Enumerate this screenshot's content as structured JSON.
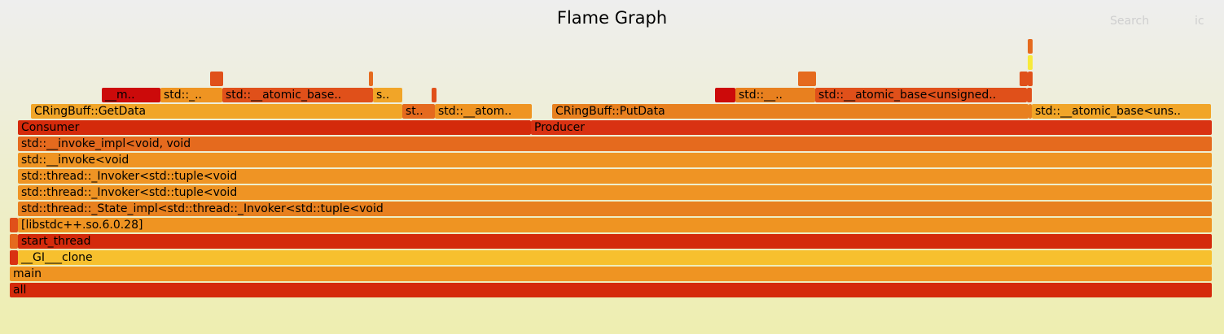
{
  "header": {
    "title": "Flame Graph",
    "search_label": "Search",
    "ic_label": "ic"
  },
  "frames": [
    {
      "label": "all",
      "color": "#d52a0b"
    },
    {
      "label": "main",
      "color": "#ef9422"
    },
    {
      "label": "__GI___clone",
      "color": "#f7c02e"
    },
    {
      "label": "",
      "color": "#d93212"
    },
    {
      "label": "start_thread",
      "color": "#d42a0b"
    },
    {
      "label": "",
      "color": "#e56a1e"
    },
    {
      "label": "[libstdc++.so.6.0.28]",
      "color": "#ef9422"
    },
    {
      "label": "",
      "color": "#e0501a"
    },
    {
      "label": "std::thread::_State_impl<std::thread::_Invoker<std::tuple<void",
      "color": "#e8801f"
    },
    {
      "label": "std::thread::_Invoker<std::tuple<void",
      "color": "#ef9424"
    },
    {
      "label": "std::thread::_Invoker<std::tuple<void",
      "color": "#ef9424"
    },
    {
      "label": "std::__invoke<void",
      "color": "#ef9422"
    },
    {
      "label": "std::__invoke_impl<void, void",
      "color": "#e56a1e"
    },
    {
      "label": "Consumer",
      "color": "#d42a0b"
    },
    {
      "label": "Producer",
      "color": "#d93212"
    },
    {
      "label": "CRingBuff::GetData",
      "color": "#f1a528"
    },
    {
      "label": "st..",
      "color": "#e56a1e"
    },
    {
      "label": "std::__atom..",
      "color": "#ef9422"
    },
    {
      "label": "CRingBuff::PutData",
      "color": "#e8801f"
    },
    {
      "label": "",
      "color": "#e8801f"
    },
    {
      "label": "std::__atomic_base<uns..",
      "color": "#f1a528"
    },
    {
      "label": "__m..",
      "color": "#cc0a0a"
    },
    {
      "label": "std::_..",
      "color": "#ef9422"
    },
    {
      "label": "std::__atomic_base..",
      "color": "#e0501a"
    },
    {
      "label": "s..",
      "color": "#f1a528"
    },
    {
      "label": "",
      "color": "#e0501a"
    },
    {
      "label": "",
      "color": "#cc0a0a"
    },
    {
      "label": "std::__..",
      "color": "#e8801f"
    },
    {
      "label": "std::__atomic_base<unsigned..",
      "color": "#e0501a"
    },
    {
      "label": "",
      "color": "#e0501a"
    },
    {
      "label": "",
      "color": "#e0501a"
    },
    {
      "label": "",
      "color": "#e56a1e"
    },
    {
      "label": "",
      "color": "#e56a1e"
    },
    {
      "label": "",
      "color": "#e0501a"
    },
    {
      "label": "",
      "color": "#e0501a"
    },
    {
      "label": "",
      "color": "#e56a1e"
    },
    {
      "label": "",
      "color": "#f7ea3a"
    },
    {
      "label": "",
      "color": "#e56a1e"
    }
  ]
}
